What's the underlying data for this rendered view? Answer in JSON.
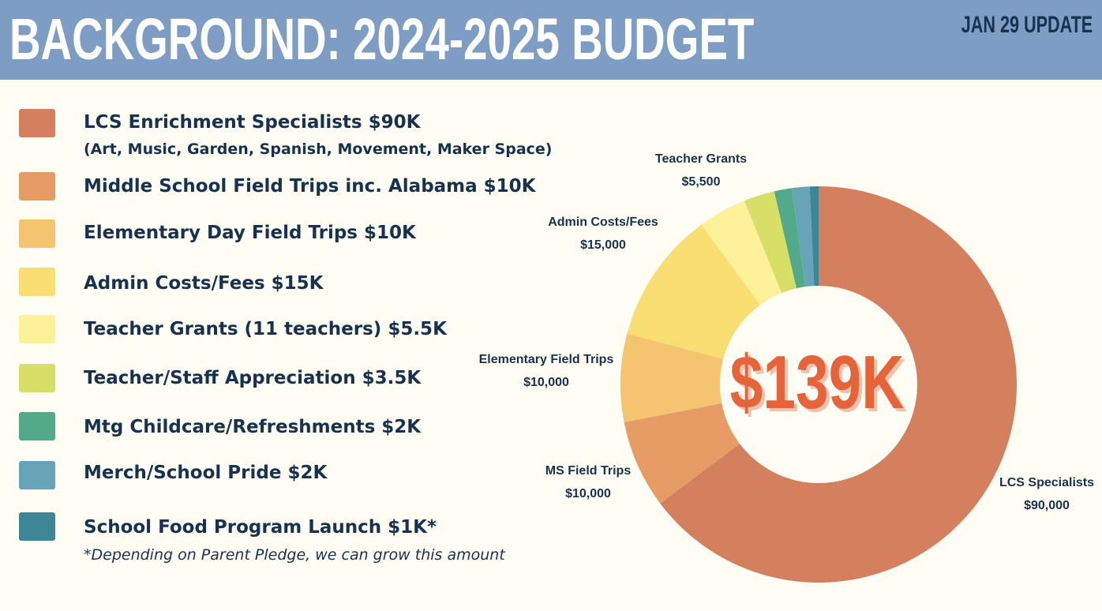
{
  "header": {
    "title": "BACKGROUND: 2024-2025 BUDGET",
    "update": "JAN 29 UPDATE",
    "background_color": "#7d9dc5"
  },
  "legend": {
    "items": [
      {
        "label": "LCS Enrichment Specialists $90K",
        "sub": "(Art, Music, Garden, Spanish, Movement, Maker Space)",
        "color": "#d4805f"
      },
      {
        "label": "Middle School Field Trips inc. Alabama $10K",
        "color": "#e79c66"
      },
      {
        "label": "Elementary Day Field Trips $10K",
        "color": "#f4c470"
      },
      {
        "label": "Admin Costs/Fees $15K",
        "color": "#f9de72"
      },
      {
        "label": "Teacher Grants (11 teachers) $5.5K",
        "color": "#fdf19a"
      },
      {
        "label": "Teacher/Staff Appreciation $3.5K",
        "color": "#d7df66"
      },
      {
        "label": "Mtg Childcare/Refreshments $2K",
        "color": "#52aa8a"
      },
      {
        "label": "Merch/School Pride $2K",
        "color": "#68a4b7"
      },
      {
        "label": "School Food Program Launch $1K*",
        "color": "#3e8596"
      }
    ],
    "note": "*Depending on Parent Pledge, we can grow this amount"
  },
  "chart_data": {
    "type": "pie",
    "donut": true,
    "center_text": "$139K",
    "center_color": "#e5643a",
    "slices": [
      {
        "name": "LCS Specialists",
        "value": 90000,
        "value_label": "$90,000",
        "color": "#d4805f"
      },
      {
        "name": "MS Field Trips",
        "value": 10000,
        "value_label": "$10,000",
        "color": "#e79c66"
      },
      {
        "name": "Elementary Field Trips",
        "value": 10000,
        "value_label": "$10,000",
        "color": "#f4c470"
      },
      {
        "name": "Admin Costs/Fees",
        "value": 15000,
        "value_label": "$15,000",
        "color": "#f9de72"
      },
      {
        "name": "Teacher Grants",
        "value": 5500,
        "value_label": "$5,500",
        "color": "#fdf19a"
      },
      {
        "name": "Teacher/Staff Appreciation",
        "value": 3500,
        "color": "#d7df66"
      },
      {
        "name": "Mtg Childcare/Refreshments",
        "value": 2000,
        "color": "#52aa8a"
      },
      {
        "name": "Merch/School Pride",
        "value": 2000,
        "color": "#68a4b7"
      },
      {
        "name": "School Food Program Launch",
        "value": 1000,
        "color": "#3e8596"
      }
    ]
  }
}
